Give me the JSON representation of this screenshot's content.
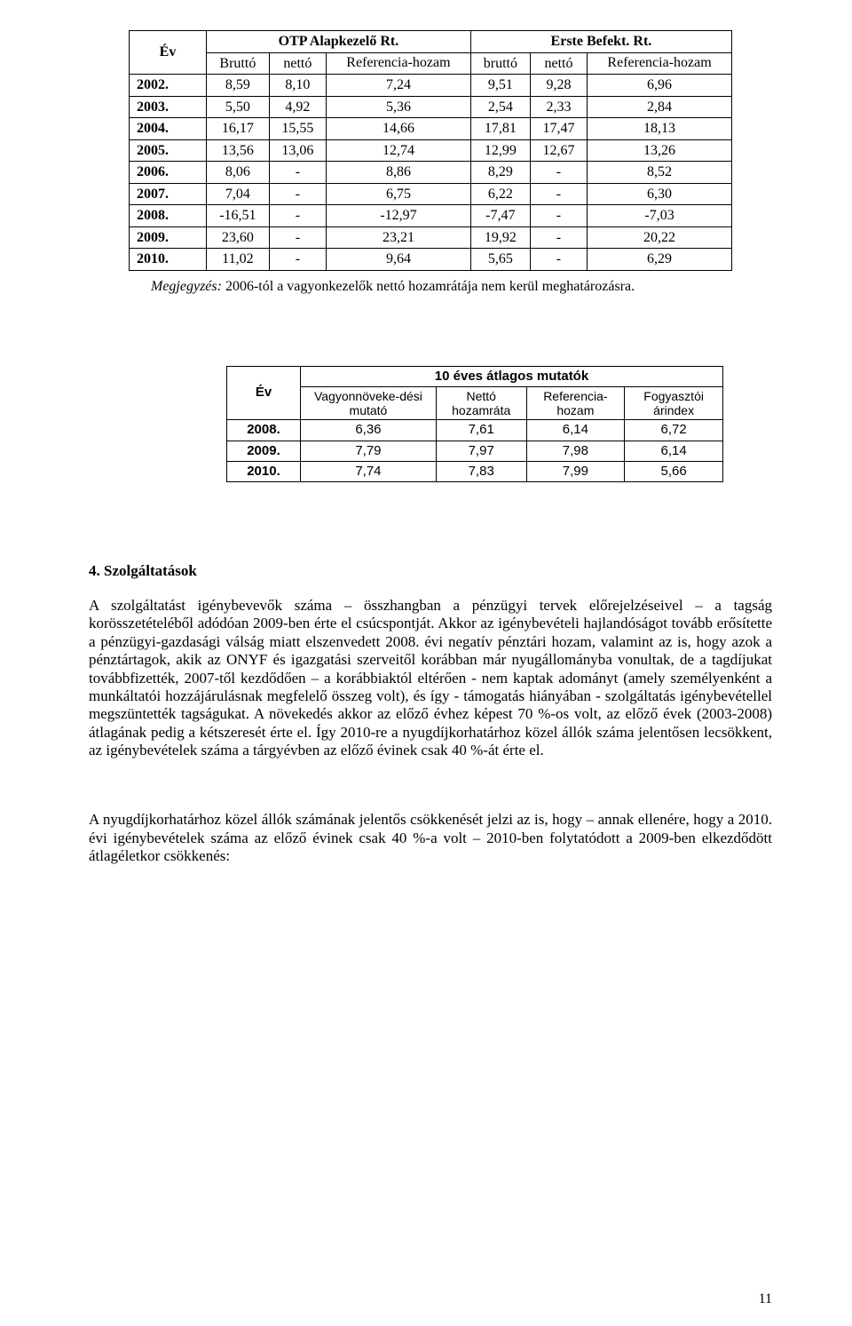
{
  "table1": {
    "headers": {
      "year": "Év",
      "group_a": "OTP Alapkezelő Rt.",
      "group_b": "Erste Befekt. Rt.",
      "col_a1": "Bruttó",
      "col_a2": "nettó",
      "col_a3": "Referencia-hozam",
      "col_b1": "bruttó",
      "col_b2": "nettó",
      "col_b3": "Referencia-hozam"
    },
    "rows": [
      {
        "year": "2002.",
        "a1": "8,59",
        "a2": "8,10",
        "a3": "7,24",
        "b1": "9,51",
        "b2": "9,28",
        "b3": "6,96"
      },
      {
        "year": "2003.",
        "a1": "5,50",
        "a2": "4,92",
        "a3": "5,36",
        "b1": "2,54",
        "b2": "2,33",
        "b3": "2,84"
      },
      {
        "year": "2004.",
        "a1": "16,17",
        "a2": "15,55",
        "a3": "14,66",
        "b1": "17,81",
        "b2": "17,47",
        "b3": "18,13"
      },
      {
        "year": "2005.",
        "a1": "13,56",
        "a2": "13,06",
        "a3": "12,74",
        "b1": "12,99",
        "b2": "12,67",
        "b3": "13,26"
      },
      {
        "year": "2006.",
        "a1": "8,06",
        "a2": "-",
        "a3": "8,86",
        "b1": "8,29",
        "b2": "-",
        "b3": "8,52"
      },
      {
        "year": "2007.",
        "a1": "7,04",
        "a2": "-",
        "a3": "6,75",
        "b1": "6,22",
        "b2": "-",
        "b3": "6,30"
      },
      {
        "year": "2008.",
        "a1": "-16,51",
        "a2": "-",
        "a3": "-12,97",
        "b1": "-7,47",
        "b2": "-",
        "b3": "-7,03"
      },
      {
        "year": "2009.",
        "a1": "23,60",
        "a2": "-",
        "a3": "23,21",
        "b1": "19,92",
        "b2": "-",
        "b3": "20,22"
      },
      {
        "year": "2010.",
        "a1": "11,02",
        "a2": "-",
        "a3": "9,64",
        "b1": "5,65",
        "b2": "-",
        "b3": "6,29"
      }
    ]
  },
  "note_label": "Megjegyzés:",
  "note_text": "2006-tól a vagyonkezelők nettó hozamrátája nem kerül meghatározásra.",
  "table2": {
    "headers": {
      "year": "Év",
      "group": "10 éves átlagos mutatók",
      "c1": "Vagyonnöveke-dési mutató",
      "c2": "Nettó hozamráta",
      "c3": "Referencia-hozam",
      "c4": "Fogyasztói árindex"
    },
    "rows": [
      {
        "year": "2008.",
        "c1": "6,36",
        "c2": "7,61",
        "c3": "6,14",
        "c4": "6,72"
      },
      {
        "year": "2009.",
        "c1": "7,79",
        "c2": "7,97",
        "c3": "7,98",
        "c4": "6,14"
      },
      {
        "year": "2010.",
        "c1": "7,74",
        "c2": "7,83",
        "c3": "7,99",
        "c4": "5,66"
      }
    ]
  },
  "section_title": "4. Szolgáltatások",
  "para1": "A szolgáltatást igénybevevők száma – összhangban a pénzügyi tervek előrejelzéseivel – a tagság korösszetételéből adódóan 2009-ben érte el csúcspontját. Akkor az igénybevételi hajlandóságot tovább erősítette a pénzügyi-gazdasági válság miatt elszenvedett 2008. évi negatív pénztári hozam, valamint az is, hogy azok a pénztártagok, akik az ONYF és igazgatási szerveitől korábban már nyugállományba vonultak, de a tagdíjukat továbbfizették, 2007-től kezdődően – a korábbiaktól eltérően - nem kaptak adományt (amely személyenként a munkáltatói hozzájárulásnak megfelelő összeg volt), és így - támogatás hiányában - szolgáltatás igénybevétellel megszüntették tagságukat. A növekedés akkor az előző évhez képest 70 %-os volt, az előző évek (2003-2008) átlagának pedig a kétszeresét érte el. Így 2010-re a nyugdíjkorhatárhoz közel állók száma jelentősen lecsökkent, az igénybevételek száma a tárgyévben az előző évinek csak 40 %-át érte el.",
  "para2": "A nyugdíjkorhatárhoz közel állók számának jelentős csökkenését jelzi az is, hogy – annak ellenére, hogy a 2010. évi igénybevételek száma az előző évinek csak 40 %-a volt – 2010-ben folytatódott a 2009-ben elkezdődött átlagéletkor csökkenés:",
  "page_num": "11",
  "colors": {
    "text": "#000000",
    "background": "#ffffff",
    "border": "#000000"
  }
}
